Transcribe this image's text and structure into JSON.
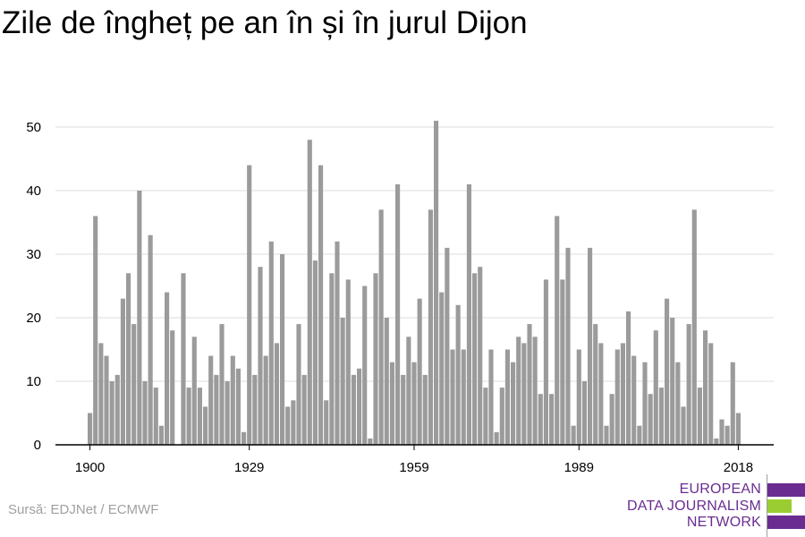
{
  "colors": {
    "bar": "#9b9b9b",
    "grid": "#dddddd",
    "axis": "#000000",
    "logo_purple": "#6a2c91",
    "logo_green": "#9acd32"
  },
  "source_text": "Sursă: EDJNet / ECMWF",
  "logo": {
    "line1": "EUROPEAN",
    "line2": "DATA JOURNALISM",
    "line3": "NETWORK"
  },
  "chart_data": {
    "type": "bar",
    "title": "Zile de îngheț pe an în și în jurul Dijon",
    "xlabel": "",
    "ylabel": "",
    "ylim": [
      0,
      55
    ],
    "yticks": [
      0,
      10,
      20,
      30,
      40,
      50
    ],
    "xticks": [
      1900,
      1929,
      1959,
      1989,
      2018
    ],
    "grid": true,
    "x": [
      1900,
      1901,
      1902,
      1903,
      1904,
      1905,
      1906,
      1907,
      1908,
      1909,
      1910,
      1911,
      1912,
      1913,
      1914,
      1915,
      1916,
      1917,
      1918,
      1919,
      1920,
      1921,
      1922,
      1923,
      1924,
      1925,
      1926,
      1927,
      1928,
      1929,
      1930,
      1931,
      1932,
      1933,
      1934,
      1935,
      1936,
      1937,
      1938,
      1939,
      1940,
      1941,
      1942,
      1943,
      1944,
      1945,
      1946,
      1947,
      1948,
      1949,
      1950,
      1951,
      1952,
      1953,
      1954,
      1955,
      1956,
      1957,
      1958,
      1959,
      1960,
      1961,
      1962,
      1963,
      1964,
      1965,
      1966,
      1967,
      1968,
      1969,
      1970,
      1971,
      1972,
      1973,
      1974,
      1975,
      1976,
      1977,
      1978,
      1979,
      1980,
      1981,
      1982,
      1983,
      1984,
      1985,
      1986,
      1987,
      1988,
      1989,
      1990,
      1991,
      1992,
      1993,
      1994,
      1995,
      1996,
      1997,
      1998,
      1999,
      2000,
      2001,
      2002,
      2003,
      2004,
      2005,
      2006,
      2007,
      2008,
      2009,
      2010,
      2011,
      2012,
      2013,
      2014,
      2015,
      2016,
      2017,
      2018
    ],
    "values": [
      5,
      36,
      16,
      14,
      10,
      11,
      23,
      27,
      19,
      40,
      10,
      33,
      9,
      3,
      24,
      18,
      0,
      27,
      9,
      17,
      9,
      6,
      14,
      11,
      19,
      10,
      14,
      12,
      2,
      44,
      11,
      28,
      14,
      32,
      16,
      30,
      6,
      7,
      19,
      11,
      48,
      29,
      44,
      7,
      27,
      32,
      20,
      26,
      11,
      12,
      25,
      1,
      27,
      37,
      20,
      13,
      41,
      11,
      17,
      13,
      23,
      11,
      37,
      51,
      24,
      31,
      15,
      22,
      15,
      41,
      27,
      28,
      9,
      15,
      2,
      9,
      15,
      13,
      17,
      16,
      19,
      17,
      8,
      26,
      8,
      36,
      26,
      31,
      3,
      15,
      10,
      31,
      19,
      16,
      3,
      8,
      15,
      16,
      21,
      14,
      3,
      13,
      8,
      18,
      9,
      23,
      20,
      13,
      6,
      19,
      37,
      9,
      18,
      16,
      1,
      4,
      3,
      13,
      5
    ]
  }
}
